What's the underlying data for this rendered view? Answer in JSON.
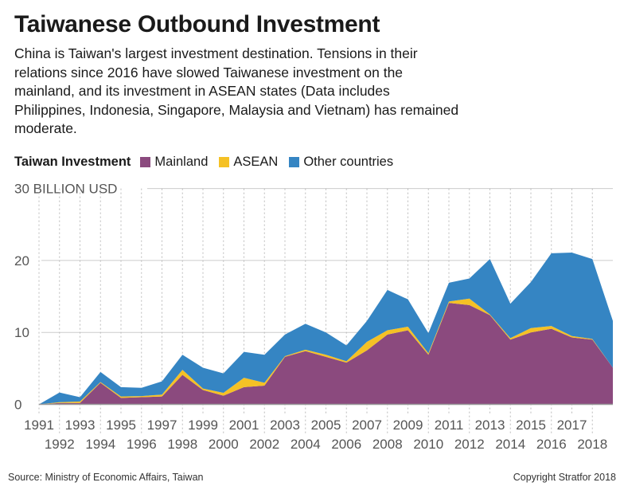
{
  "title": "Taiwanese Outbound Investment",
  "subtitle": "China is Taiwan's largest investment destination. Tensions in their relations since 2016 have slowed Taiwanese investment on the mainland, and its investment in ASEAN states (Data includes Philippines, Indonesia, Singapore, Malaysia and Vietnam) has remained moderate.",
  "legend": {
    "title": "Taiwan Investment",
    "items": [
      {
        "label": "Mainland",
        "color": "#8B4A7E"
      },
      {
        "label": "ASEAN",
        "color": "#F5C125"
      },
      {
        "label": "Other countries",
        "color": "#3585C3"
      }
    ]
  },
  "footer": {
    "source": "Source: Ministry of Economic Affairs, Taiwan",
    "copyright": "Copyright Stratfor 2018"
  },
  "chart_data": {
    "type": "area",
    "stacked": true,
    "ylabel": "30 BILLION USD",
    "ylim": [
      0,
      30
    ],
    "yticks": [
      "0",
      "10",
      "20",
      "30 BILLION USD"
    ],
    "ytick_values": [
      0,
      10,
      20,
      30
    ],
    "xlim": [
      1991,
      2019
    ],
    "xtick_labels": [
      "1991",
      "1992",
      "1993",
      "1994",
      "1995",
      "1996",
      "1997",
      "1998",
      "1999",
      "2000",
      "2001",
      "2002",
      "2003",
      "2004",
      "2005",
      "2006",
      "2007",
      "2008",
      "2009",
      "2010",
      "2011",
      "2012",
      "2013",
      "2014",
      "2015",
      "2016",
      "2017",
      "2018"
    ],
    "grid": "horizontal solid, vertical dashed",
    "x": [
      1991,
      1992,
      1993,
      1994,
      1995,
      1996,
      1997,
      1998,
      1999,
      2000,
      2001,
      2002,
      2003,
      2004,
      2005,
      2006,
      2007,
      2008,
      2009,
      2010,
      2011,
      2012,
      2013,
      2014,
      2015,
      2016,
      2017,
      2018,
      2019
    ],
    "series": [
      {
        "name": "Mainland",
        "color": "#8B4A7E",
        "values": [
          0,
          0.2,
          0.2,
          3.0,
          0.9,
          1.0,
          1.1,
          4.1,
          2.0,
          1.2,
          2.4,
          2.6,
          6.6,
          7.4,
          6.6,
          5.8,
          7.5,
          9.7,
          10.3,
          6.9,
          14.1,
          13.8,
          12.4,
          9.0,
          10.0,
          10.5,
          9.3,
          9.0,
          5.1
        ]
      },
      {
        "name": "ASEAN",
        "color": "#F5C125",
        "values": [
          0,
          0.1,
          0.2,
          0.1,
          0.2,
          0.15,
          0.25,
          0.7,
          0.2,
          0.4,
          1.3,
          0.4,
          0.1,
          0.2,
          0.3,
          0.2,
          1.2,
          0.6,
          0.5,
          0.2,
          0.2,
          0.9,
          0.1,
          0.2,
          0.6,
          0.4,
          0.2,
          0.1,
          0.0
        ]
      },
      {
        "name": "Other countries",
        "color": "#3585C3",
        "values": [
          0,
          1.35,
          0.6,
          1.4,
          1.3,
          1.15,
          1.85,
          2.1,
          2.9,
          2.7,
          3.6,
          3.9,
          3.0,
          3.6,
          3.1,
          2.2,
          2.9,
          5.6,
          3.8,
          2.8,
          2.6,
          2.8,
          7.7,
          4.8,
          6.4,
          10.1,
          11.6,
          11.1,
          6.5
        ]
      }
    ]
  }
}
